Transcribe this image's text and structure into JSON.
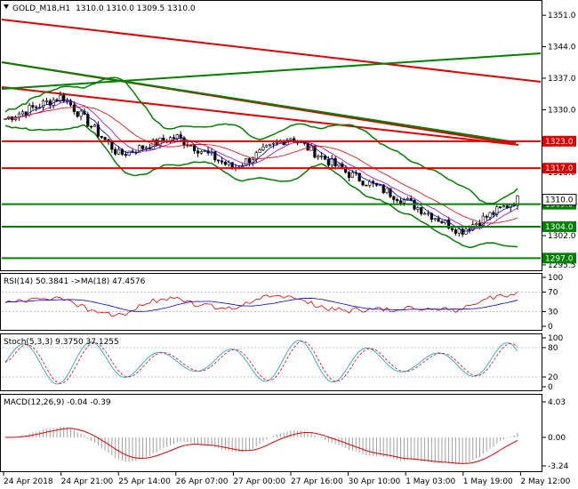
{
  "header": {
    "symbol": "GOLD_M18,H1",
    "ohlc": "1310.0 1310.0 1309.5 1310.0"
  },
  "colors": {
    "price_line": "#000000",
    "resistance": "#e00000",
    "support": "#008000",
    "bollinger": "#008000",
    "rsi": "#e00000",
    "rsi_ma": "#0000cc",
    "stoch_main": "#2aa9c9",
    "stoch_signal": "#e00000",
    "macd_hist": "#a0a0a0",
    "macd_signal": "#e00000"
  },
  "price_panel": {
    "y_ticks": [
      "1351.0",
      "1344.0",
      "1337.0",
      "1330.0",
      "1323.0",
      "1316.0",
      "1309.0",
      "1302.0",
      "1295.5"
    ],
    "level_labels": [
      {
        "text": "1323.0",
        "kind": "resistance"
      },
      {
        "text": "1317.0",
        "kind": "resistance"
      },
      {
        "text": "1309.0",
        "kind": "support"
      },
      {
        "text": "1304.0",
        "kind": "support"
      },
      {
        "text": "1297.0",
        "kind": "support"
      }
    ],
    "current_label": "1310.0",
    "ylim": [
      1294.5,
      1354
    ]
  },
  "rsi_panel": {
    "title": "RSI(14) 50.3841 ->MA(18) 47.4576",
    "y_ticks": [
      "100",
      "70",
      "30",
      "0"
    ]
  },
  "stoch_panel": {
    "title": "Stoch(5,3,3) 9.3750 37.1255",
    "y_ticks": [
      "100",
      "80",
      "20",
      "0"
    ]
  },
  "macd_panel": {
    "title": "MACD(12,26,9) -0.04 -0.39",
    "y_ticks": [
      "4.03",
      "0.00",
      "-3.24"
    ]
  },
  "x_axis": {
    "labels": [
      "24 Apr 2018",
      "24 Apr 21:00",
      "25 Apr 14:00",
      "26 Apr 07:00",
      "27 Apr 00:00",
      "27 Apr 16:00",
      "30 Apr 10:00",
      "1 May 03:00",
      "1 May 19:00",
      "2 May 12:00"
    ]
  },
  "chart_data": {
    "type": "line",
    "title": "GOLD_M18,H1",
    "x": [
      "24 Apr 2018",
      "24 Apr 21:00",
      "25 Apr 14:00",
      "26 Apr 07:00",
      "27 Apr 00:00",
      "27 Apr 16:00",
      "30 Apr 10:00",
      "1 May 03:00",
      "1 May 19:00",
      "2 May 12:00"
    ],
    "series": [
      {
        "name": "",
        "values": [
          1328,
          1333,
          1320,
          1324,
          1317,
          1324,
          1316,
          1310,
          1303,
          1310
        ]
      }
    ],
    "ylim": [
      1294.5,
      1354
    ],
    "horizontal_levels": [
      1323.0,
      1317.0,
      1309.0,
      1304.0,
      1297.0
    ]
  }
}
